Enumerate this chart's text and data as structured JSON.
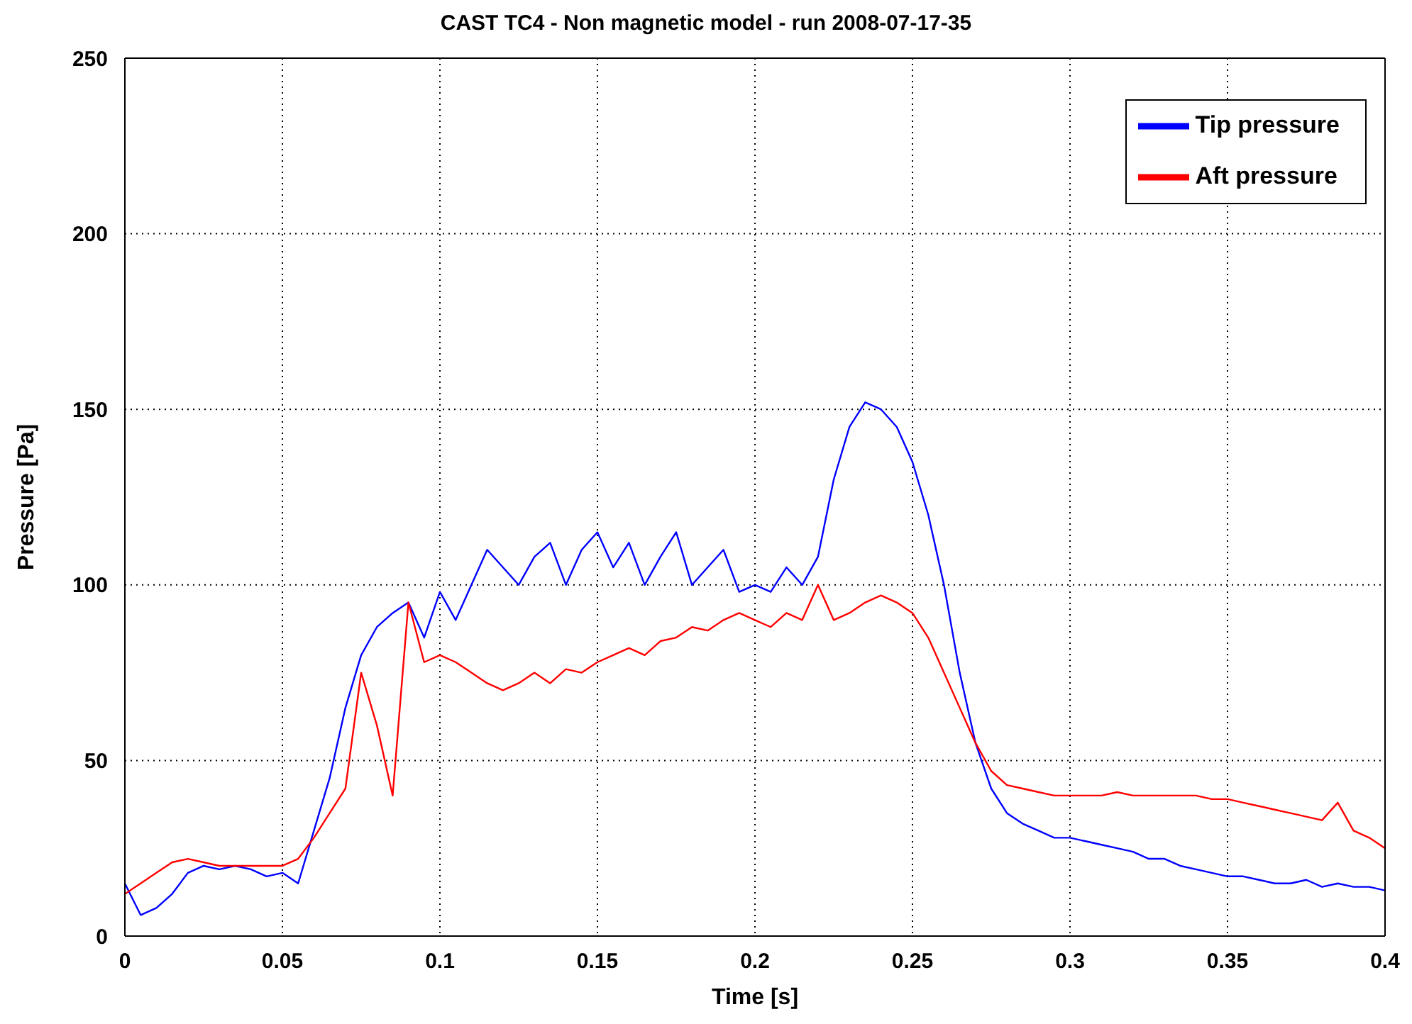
{
  "chart_data": {
    "type": "line",
    "title": "CAST TC4 - Non magnetic model - run 2008-07-17-35",
    "xlabel": "Time [s]",
    "ylabel": "Pressure [Pa]",
    "x": [
      0,
      0.005,
      0.01,
      0.015,
      0.02,
      0.025,
      0.03,
      0.035,
      0.04,
      0.045,
      0.05,
      0.055,
      0.06,
      0.065,
      0.07,
      0.075,
      0.08,
      0.085,
      0.09,
      0.095,
      0.1,
      0.105,
      0.11,
      0.115,
      0.12,
      0.125,
      0.13,
      0.135,
      0.14,
      0.145,
      0.15,
      0.155,
      0.16,
      0.165,
      0.17,
      0.175,
      0.18,
      0.185,
      0.19,
      0.195,
      0.2,
      0.205,
      0.21,
      0.215,
      0.22,
      0.225,
      0.23,
      0.235,
      0.24,
      0.245,
      0.25,
      0.255,
      0.26,
      0.265,
      0.27,
      0.275,
      0.28,
      0.285,
      0.29,
      0.295,
      0.3,
      0.305,
      0.31,
      0.315,
      0.32,
      0.325,
      0.33,
      0.335,
      0.34,
      0.345,
      0.35,
      0.355,
      0.36,
      0.365,
      0.37,
      0.375,
      0.38,
      0.385,
      0.39,
      0.395,
      0.4
    ],
    "series": [
      {
        "name": "Tip pressure",
        "color": "#0000ff",
        "values": [
          15,
          6,
          8,
          12,
          18,
          20,
          19,
          20,
          19,
          17,
          18,
          15,
          30,
          45,
          65,
          80,
          88,
          92,
          95,
          85,
          98,
          90,
          100,
          110,
          105,
          100,
          108,
          112,
          100,
          110,
          115,
          105,
          112,
          100,
          108,
          115,
          100,
          105,
          110,
          98,
          100,
          98,
          105,
          100,
          108,
          130,
          145,
          152,
          150,
          145,
          135,
          120,
          100,
          75,
          55,
          42,
          35,
          32,
          30,
          28,
          28,
          27,
          26,
          25,
          24,
          22,
          22,
          20,
          19,
          18,
          17,
          17,
          16,
          15,
          15,
          16,
          14,
          15,
          14,
          14,
          13
        ]
      },
      {
        "name": "Aft pressure",
        "color": "#ff0000",
        "values": [
          12,
          15,
          18,
          21,
          22,
          21,
          20,
          20,
          20,
          20,
          20,
          22,
          28,
          35,
          42,
          75,
          60,
          40,
          95,
          78,
          80,
          78,
          75,
          72,
          70,
          72,
          75,
          72,
          76,
          75,
          78,
          80,
          82,
          80,
          84,
          85,
          88,
          87,
          90,
          92,
          90,
          88,
          92,
          90,
          100,
          90,
          92,
          95,
          97,
          95,
          92,
          85,
          75,
          65,
          55,
          47,
          43,
          42,
          41,
          40,
          40,
          40,
          40,
          41,
          40,
          40,
          40,
          40,
          40,
          39,
          39,
          38,
          37,
          36,
          35,
          34,
          33,
          38,
          30,
          28,
          25
        ]
      }
    ],
    "xlim": [
      0,
      0.4
    ],
    "xticks": [
      0,
      0.05,
      0.1,
      0.15,
      0.2,
      0.25,
      0.3,
      0.35,
      0.4
    ],
    "ylim": [
      0,
      250
    ],
    "yticks": [
      0,
      50,
      100,
      150,
      200,
      250
    ],
    "grid": true,
    "legend": "top right",
    "line_style": "solid",
    "marker": "none"
  }
}
